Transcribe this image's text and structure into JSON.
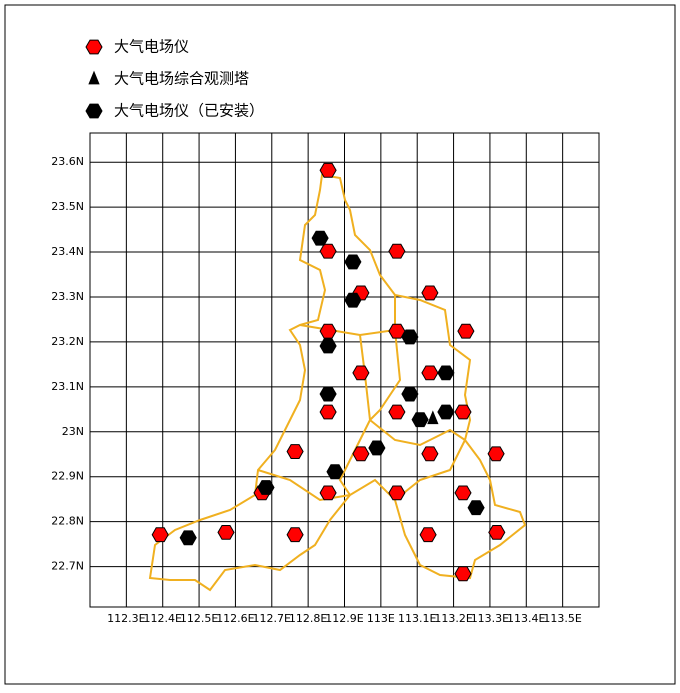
{
  "chart_data": {
    "type": "scatter",
    "xlim": [
      112.2,
      113.6
    ],
    "ylim": [
      22.61,
      23.665
    ],
    "xticks": [
      {
        "value": 112.3,
        "label": "112.3E"
      },
      {
        "value": 112.4,
        "label": "112.4E"
      },
      {
        "value": 112.5,
        "label": "112.5E"
      },
      {
        "value": 112.6,
        "label": "112.6E"
      },
      {
        "value": 112.7,
        "label": "112.7E"
      },
      {
        "value": 112.8,
        "label": "112.8E"
      },
      {
        "value": 112.9,
        "label": "112.9E"
      },
      {
        "value": 113,
        "label": "113E"
      },
      {
        "value": 113.1,
        "label": "113.1E"
      },
      {
        "value": 113.2,
        "label": "113.2E"
      },
      {
        "value": 113.3,
        "label": "113.3E"
      },
      {
        "value": 113.4,
        "label": "113.4E"
      },
      {
        "value": 113.5,
        "label": "113.5E"
      }
    ],
    "yticks": [
      {
        "value": 22.7,
        "label": "22.7N"
      },
      {
        "value": 22.8,
        "label": "22.8N"
      },
      {
        "value": 22.9,
        "label": "22.9N"
      },
      {
        "value": 23,
        "label": "23N"
      },
      {
        "value": 23.1,
        "label": "23.1N"
      },
      {
        "value": 23.2,
        "label": "23.2N"
      },
      {
        "value": 23.3,
        "label": "23.3N"
      },
      {
        "value": 23.4,
        "label": "23.4N"
      },
      {
        "value": 23.5,
        "label": "23.5N"
      },
      {
        "value": 23.6,
        "label": "23.6N"
      }
    ],
    "grid": true,
    "series": [
      {
        "name": "大气电场仪",
        "color": "#ff0000",
        "marker": "hexagon",
        "x": [
          112.855,
          112.855,
          113.044,
          112.945,
          113.135,
          112.855,
          113.044,
          113.234,
          112.945,
          113.135,
          112.855,
          113.044,
          113.226,
          112.764,
          112.945,
          113.135,
          113.317,
          112.673,
          112.855,
          113.044,
          113.226,
          112.393,
          112.574,
          112.764,
          113.13,
          113.319,
          113.226
        ],
        "y": [
          23.582,
          23.402,
          23.402,
          23.309,
          23.309,
          23.224,
          23.224,
          23.224,
          23.131,
          23.131,
          23.044,
          23.044,
          23.044,
          22.956,
          22.951,
          22.951,
          22.951,
          22.864,
          22.864,
          22.864,
          22.864,
          22.771,
          22.776,
          22.771,
          22.771,
          22.776,
          22.684
        ]
      },
      {
        "name": "大气电场综合观测塔",
        "color": "#000000",
        "marker": "triangle",
        "x": [
          113.143
        ],
        "y": [
          23.029
        ]
      },
      {
        "name": "大气电场仪（已安装）",
        "color": "#000000",
        "marker": "hexagon",
        "x": [
          112.833,
          112.923,
          112.923,
          112.855,
          113.08,
          112.855,
          113.08,
          113.179,
          113.179,
          113.108,
          112.989,
          112.874,
          112.684,
          112.47,
          113.262
        ],
        "y": [
          23.431,
          23.378,
          23.293,
          23.191,
          23.211,
          23.084,
          23.084,
          23.131,
          23.044,
          23.027,
          22.964,
          22.911,
          22.876,
          22.764,
          22.831
        ]
      }
    ]
  }
}
